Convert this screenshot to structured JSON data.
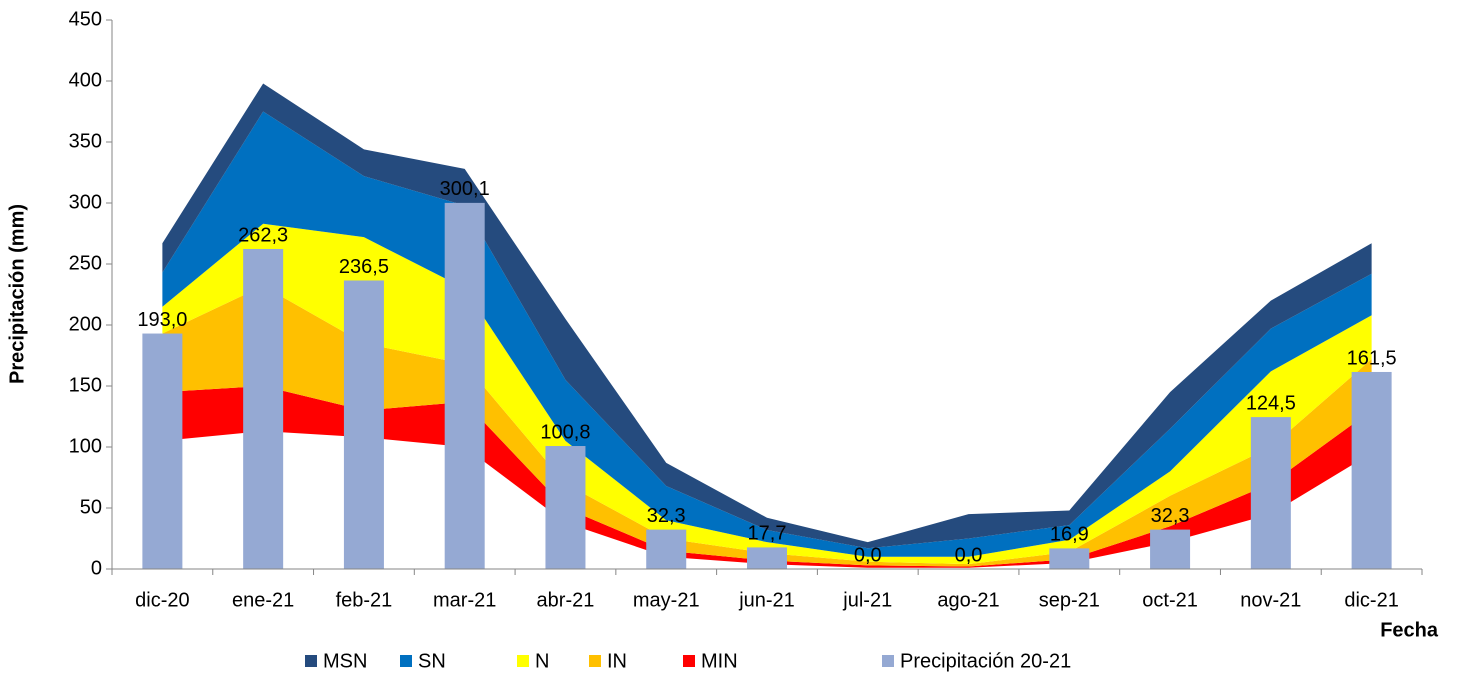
{
  "chart_data": {
    "type": "area",
    "x_label": "Fecha",
    "y_label": "Precipitación (mm)",
    "categories": [
      "dic-20",
      "ene-21",
      "feb-21",
      "mar-21",
      "abr-21",
      "may-21",
      "jun-21",
      "jul-21",
      "ago-21",
      "sep-21",
      "oct-21",
      "nov-21",
      "dic-21"
    ],
    "ylim": [
      0,
      450
    ],
    "yticks": [
      0,
      50,
      100,
      150,
      200,
      250,
      300,
      350,
      400,
      450
    ],
    "series": [
      {
        "type": "area",
        "color": "#ffffff",
        "values": [
          105,
          113,
          108,
          100,
          38,
          10,
          4,
          1,
          1,
          5,
          22,
          45,
          95
        ]
      },
      {
        "type": "area",
        "name": "MIN",
        "color": "#ff0000",
        "values": [
          40,
          37,
          22,
          37,
          12,
          5,
          3,
          2,
          1,
          3,
          13,
          25,
          35
        ]
      },
      {
        "type": "area",
        "name": "IN",
        "color": "#ffc000",
        "values": [
          48,
          82,
          55,
          31,
          20,
          10,
          6,
          3,
          2,
          6,
          25,
          30,
          42
        ]
      },
      {
        "type": "area",
        "name": "N",
        "color": "#ffff00",
        "values": [
          22,
          51,
          87,
          62,
          35,
          15,
          9,
          4,
          6,
          10,
          20,
          62,
          36
        ]
      },
      {
        "type": "area",
        "name": "SN",
        "color": "#0070c0",
        "values": [
          28,
          92,
          50,
          68,
          50,
          28,
          10,
          7,
          15,
          12,
          35,
          35,
          34
        ]
      },
      {
        "type": "area",
        "name": "MSN",
        "color": "#254b7e",
        "values": [
          24,
          23,
          22,
          30,
          50,
          19,
          10,
          5,
          20,
          12,
          30,
          23,
          25
        ]
      },
      {
        "type": "bar",
        "name": "Precipitación 20-21",
        "color": "#95a9d3",
        "values": [
          193.0,
          262.3,
          236.5,
          300.1,
          100.8,
          32.3,
          17.7,
          0.0,
          0.0,
          16.9,
          32.3,
          124.5,
          161.5
        ],
        "value_labels": [
          "193,0",
          "262,3",
          "236,5",
          "300,1",
          "100,8",
          "32,3",
          "17,7",
          "0,0",
          "0,0",
          "16,9",
          "32,3",
          "124,5",
          "161,5"
        ]
      }
    ],
    "legend_order": [
      5,
      4,
      3,
      2,
      1,
      6
    ]
  }
}
